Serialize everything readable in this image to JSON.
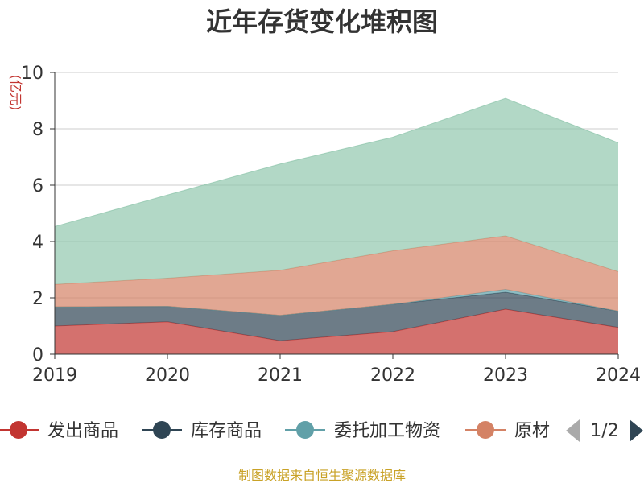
{
  "chart_data": {
    "type": "area",
    "stacked": true,
    "title": "近年存货变化堆积图",
    "ylabel": "(亿元)",
    "xlabel": "",
    "x": [
      "2019",
      "2020",
      "2021",
      "2022",
      "2023",
      "2024"
    ],
    "ylim": [
      0,
      10
    ],
    "yticks": [
      "0",
      "2",
      "4",
      "6",
      "8",
      "10"
    ],
    "grid": true,
    "legend_position": "bottom",
    "series": [
      {
        "name": "发出商品",
        "color": "#c23531",
        "values": [
          1.0,
          1.15,
          0.48,
          0.8,
          1.6,
          0.95
        ]
      },
      {
        "name": "库存商品",
        "color": "#2f4554",
        "values": [
          0.68,
          0.55,
          0.9,
          0.97,
          0.6,
          0.58
        ]
      },
      {
        "name": "委托加工物资",
        "color": "#61a0a8",
        "values": [
          0.0,
          0.0,
          0.0,
          0.0,
          0.1,
          0.0
        ]
      },
      {
        "name": "原材料",
        "color": "#d48265",
        "values": [
          0.8,
          1.0,
          1.6,
          1.9,
          1.9,
          1.4
        ]
      },
      {
        "name": "",
        "color": "#91c7ae",
        "values": [
          2.05,
          2.95,
          3.77,
          4.03,
          4.88,
          4.57
        ]
      }
    ],
    "legend_visible": [
      "发出商品",
      "库存商品",
      "委托加工物资",
      "原材"
    ],
    "legend_page": "1/2"
  },
  "footer": {
    "source": "制图数据来自恒生聚源数据库"
  }
}
